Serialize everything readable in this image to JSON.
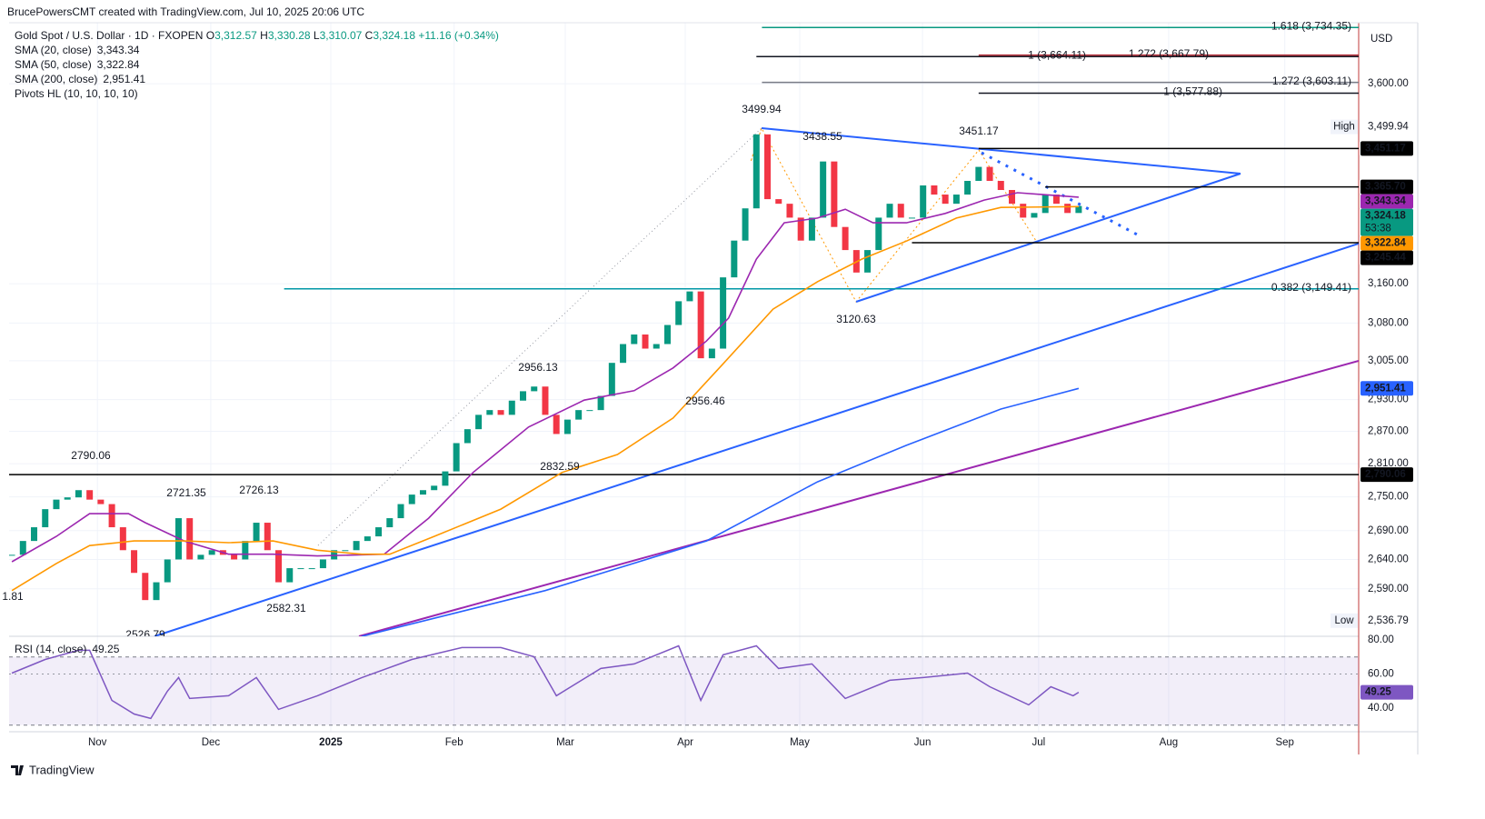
{
  "header": {
    "attribution": "BrucePowersCMT created with TradingView.com, Jul 10, 2025 20:06 UTC"
  },
  "legend": {
    "symbol": "Gold Spot / U.S. Dollar · 1D · FXOPEN",
    "ohlc": [
      {
        "key": "O",
        "value": "3,312.57"
      },
      {
        "key": "H",
        "value": "3,330.28"
      },
      {
        "key": "L",
        "value": "3,310.07"
      },
      {
        "key": "C",
        "value": "3,324.18"
      }
    ],
    "change": "+11.16 (+0.34%)",
    "pivots": "Pivots HL (10, 10, 10, 10)"
  },
  "chart_data": {
    "type": "candlestick",
    "currency": "USD",
    "x": [
      0,
      2,
      4,
      6,
      8,
      10,
      12,
      14,
      16,
      18,
      20,
      22,
      24,
      26,
      28,
      30,
      32,
      34,
      36,
      38,
      40,
      42,
      44,
      46,
      48,
      50,
      52,
      54,
      56,
      58,
      60,
      62,
      64,
      66,
      68,
      70,
      72,
      74,
      76,
      78,
      80,
      82,
      84,
      86,
      88,
      90,
      92,
      94,
      96,
      98,
      100,
      102,
      104,
      106,
      108,
      110,
      112,
      114,
      116,
      118,
      120,
      122,
      124,
      126,
      128,
      130,
      132,
      134,
      136,
      138,
      140,
      142,
      144,
      146,
      148,
      150,
      152,
      154,
      156,
      158,
      160,
      162,
      164,
      166,
      168,
      170,
      172,
      174,
      176,
      178,
      180,
      182,
      184,
      186,
      188,
      190,
      192
    ],
    "values": [
      2648,
      2672,
      2696,
      2728,
      2745,
      2749,
      2762,
      2745,
      2737,
      2696,
      2656,
      2617,
      2571,
      2601,
      2640,
      2712,
      2640,
      2648,
      2656,
      2648,
      2640,
      2672,
      2704,
      2656,
      2601,
      2625,
      2625,
      2625,
      2640,
      2656,
      2656,
      2672,
      2680,
      2696,
      2712,
      2737,
      2754,
      2762,
      2770,
      2796,
      2848,
      2874,
      2901,
      2910,
      2901,
      2928,
      2946,
      2955,
      2901,
      2865,
      2892,
      2910,
      2910,
      2937,
      3001,
      3038,
      3057,
      3029,
      3038,
      3076,
      3124,
      3144,
      3010,
      3029,
      3173,
      3250,
      3319,
      3483,
      3339,
      3329,
      3299,
      3250,
      3299,
      3422,
      3279,
      3230,
      3183,
      3230,
      3299,
      3329,
      3299,
      3299,
      3369,
      3349,
      3329,
      3349,
      3379,
      3410,
      3379,
      3359,
      3329,
      3299,
      3309,
      3349,
      3329,
      3309,
      3324.18
    ],
    "up_color": "#089981",
    "down_color": "#f23645",
    "log": true,
    "ylim": [
      2511,
      3746
    ],
    "yticks": [
      {
        "value": 3600,
        "label": "3,600.00"
      },
      {
        "value": 3160,
        "label": "3,160.00"
      },
      {
        "value": 3080,
        "label": "3,080.00"
      },
      {
        "value": 3005,
        "label": "3,005.00"
      },
      {
        "value": 2930,
        "label": "2,930.00"
      },
      {
        "value": 2870,
        "label": "2,870.00"
      },
      {
        "value": 2810,
        "label": "2,810.00"
      },
      {
        "value": 2750,
        "label": "2,750.00"
      },
      {
        "value": 2690,
        "label": "2,690.00"
      },
      {
        "value": 2640,
        "label": "2,640.00"
      },
      {
        "value": 2590,
        "label": "2,590.00"
      }
    ],
    "xlim": [
      -0.5,
      242.4
    ],
    "xticks": [
      {
        "value": 15.4,
        "label": "Nov"
      },
      {
        "value": 35.8,
        "label": "Dec"
      },
      {
        "value": 57.4,
        "label": "2025"
      },
      {
        "value": 79.6,
        "label": "Feb"
      },
      {
        "value": 99.6,
        "label": "Mar"
      },
      {
        "value": 121.2,
        "label": "Apr"
      },
      {
        "value": 141.8,
        "label": "May"
      },
      {
        "value": 163.9,
        "label": "Jun"
      },
      {
        "value": 184.8,
        "label": "Jul"
      },
      {
        "value": 208.2,
        "label": "Aug"
      },
      {
        "value": 229.1,
        "label": "Sep"
      }
    ],
    "overlays": [
      {
        "name": "SMA (20, close)",
        "last_label": "3,343.34",
        "color": "#9c27b0",
        "x": [
          0,
          8,
          14,
          21,
          24,
          31,
          39,
          47,
          55,
          67,
          75,
          83,
          93,
          103,
          112,
          119,
          125,
          129,
          134,
          139,
          145,
          150,
          155,
          161,
          168,
          175,
          181,
          192
        ],
        "values": [
          2636,
          2680,
          2720,
          2720,
          2704,
          2672,
          2649,
          2649,
          2646,
          2649,
          2712,
          2794,
          2878,
          2929,
          2947,
          2991,
          3044,
          3090,
          3211,
          3288,
          3298,
          3317,
          3288,
          3288,
          3308,
          3337,
          3353,
          3343.34
        ]
      },
      {
        "name": "SMA (50, close)",
        "last_label": "3,322.84",
        "color": "#ff9800",
        "x": [
          0,
          8,
          14,
          22,
          31,
          39,
          47,
          55,
          63,
          68,
          76,
          88,
          99,
          109,
          119,
          128,
          137,
          145,
          153,
          161,
          170,
          178,
          192
        ],
        "values": [
          2587,
          2633,
          2664,
          2672,
          2672,
          2669,
          2672,
          2656,
          2649,
          2649,
          2680,
          2728,
          2794,
          2827,
          2895,
          2999,
          3108,
          3164,
          3211,
          3249,
          3298,
          3321,
          3322.84
        ]
      },
      {
        "name": "SMA (200, close)",
        "last_label": "2,951.41",
        "color": "#2962ff",
        "x": [
          63,
          96,
          125,
          145,
          161,
          178,
          192
        ],
        "values": [
          2511,
          2587,
          2672,
          2777,
          2844,
          2912,
          2951.41
        ]
      }
    ],
    "levels": [
      {
        "value": 3451.17,
        "label": "3,451.17",
        "color": "#000000",
        "from": 174
      },
      {
        "value": 3365.7,
        "label": "3,365.70",
        "color": "#000000",
        "from": 186
      },
      {
        "value": 3245.44,
        "label": "3,245.44",
        "color": "#000000",
        "from": 162
      },
      {
        "value": 2790.06,
        "label": "2,790.06",
        "color": "#000000",
        "from": -0.5
      }
    ],
    "fibs": [
      {
        "value": 3734.35,
        "label": "1.618 (3,734.35)",
        "color": "#089981",
        "from": 135
      },
      {
        "value": 3664.11,
        "label": "1 (3,664.11)",
        "color": "#131722",
        "from": 134
      },
      {
        "value": 3667.79,
        "label": "1.272 (3,667.79)",
        "color": "#b22833",
        "from": 174
      },
      {
        "value": 3603.11,
        "label": "1.272 (3,603.11)",
        "color": "#787b86",
        "from": 135
      },
      {
        "value": 3577.88,
        "label": "1 (3,577.88)",
        "color": "#131722",
        "from": 174
      },
      {
        "value": 3149.41,
        "label": "0.382 (3,149.41)",
        "color": "#0097a7",
        "from": 49
      }
    ],
    "high_low": [
      {
        "tag": "High",
        "value": 3499.94,
        "label": "3,499.94"
      },
      {
        "tag": "Low",
        "value": 2536.79,
        "label": "2,536.79"
      }
    ],
    "current": {
      "value": 3324.18,
      "label": "3,324.18",
      "countdown": "53:38",
      "color": "#089981"
    },
    "pivot_labels": [
      "3499.94",
      "3438.55",
      "3451.17",
      "3120.63",
      "2956.13",
      "2956.46",
      "2832.59",
      "2790.06",
      "2721.35",
      "2726.13",
      "2582.31",
      "2526.79",
      "1.81"
    ],
    "rsi": {
      "name": "RSI (14, close)",
      "last_label": "49.25",
      "color": "#7e57c2",
      "x": [
        0,
        6,
        12,
        14,
        18,
        22,
        25,
        28,
        30,
        32,
        39,
        44,
        48,
        55,
        63,
        72,
        81,
        88,
        94,
        98,
        106,
        112,
        120,
        124,
        128,
        134,
        138,
        144,
        150,
        158,
        164,
        172,
        176,
        183,
        187,
        191,
        192
      ],
      "values": [
        60.5,
        68.5,
        73.9,
        73.9,
        44.5,
        36.5,
        33.9,
        49.9,
        57.9,
        45.6,
        47.2,
        57.9,
        39.2,
        47.2,
        57.9,
        68.5,
        75.5,
        75.5,
        70.1,
        47.2,
        63.2,
        65.9,
        76.5,
        44.5,
        71.2,
        76.5,
        63.2,
        65.9,
        45.6,
        56.3,
        57.9,
        60.5,
        52.5,
        41.9,
        52.5,
        47.2,
        49.25
      ],
      "ylim": [
        26.1,
        82.1
      ],
      "yticks": [
        {
          "value": 80,
          "label": "80.00"
        },
        {
          "value": 60,
          "label": "60.00"
        },
        {
          "value": 40,
          "label": "40.00"
        }
      ],
      "bands": [
        70,
        30
      ]
    }
  },
  "footer": {
    "brand": "TradingView"
  }
}
